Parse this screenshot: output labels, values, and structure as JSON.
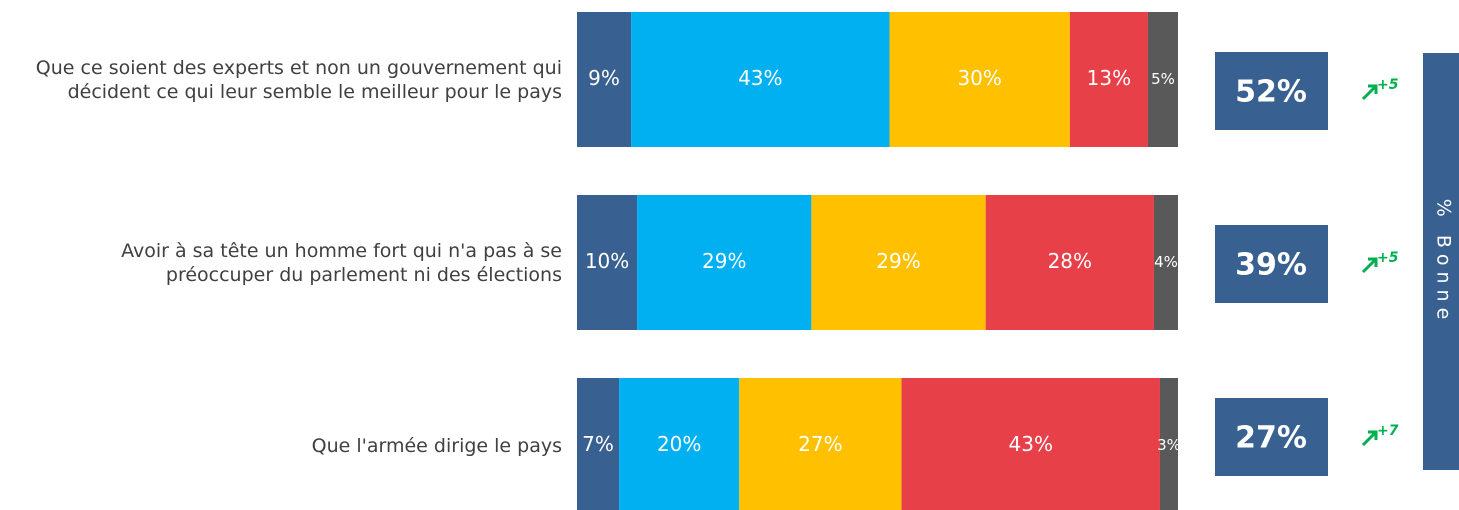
{
  "chart_data": {
    "type": "stacked-bar",
    "categories": [
      "Que ce soient des experts et non un gouvernement qui décident ce qui leur semble le meilleur pour le pays",
      "Avoir à sa tête un homme fort qui n'a pas à se préoccuper du parlement ni des élections",
      "Que l'armée dirige le pays"
    ],
    "xlim": [
      0,
      100
    ],
    "series": [
      {
        "color": "#386090",
        "values": [
          9,
          10,
          7
        ],
        "value_labels": [
          "9%",
          "10%",
          "7%"
        ]
      },
      {
        "color": "#00b0f0",
        "values": [
          43,
          29,
          20
        ],
        "value_labels": [
          "43%",
          "29%",
          "20%"
        ]
      },
      {
        "color": "#ffc000",
        "values": [
          30,
          29,
          27
        ],
        "value_labels": [
          "30%",
          "29%",
          "27%"
        ]
      },
      {
        "color": "#e84049",
        "values": [
          13,
          28,
          43
        ],
        "value_labels": [
          "13%",
          "28%",
          "43%"
        ]
      },
      {
        "color": "#595959",
        "values": [
          5,
          4,
          3
        ],
        "value_labels": [
          "5%",
          "4%",
          "3%"
        ]
      }
    ],
    "totals": {
      "title": "% Bonne",
      "color": "#386090",
      "values": [
        52,
        39,
        27
      ],
      "value_labels": [
        "52%",
        "39%",
        "27%"
      ]
    },
    "changes": {
      "color": "#00b050",
      "values": [
        5,
        5,
        7
      ],
      "value_labels": [
        "+5",
        "+5",
        "+7"
      ]
    }
  }
}
